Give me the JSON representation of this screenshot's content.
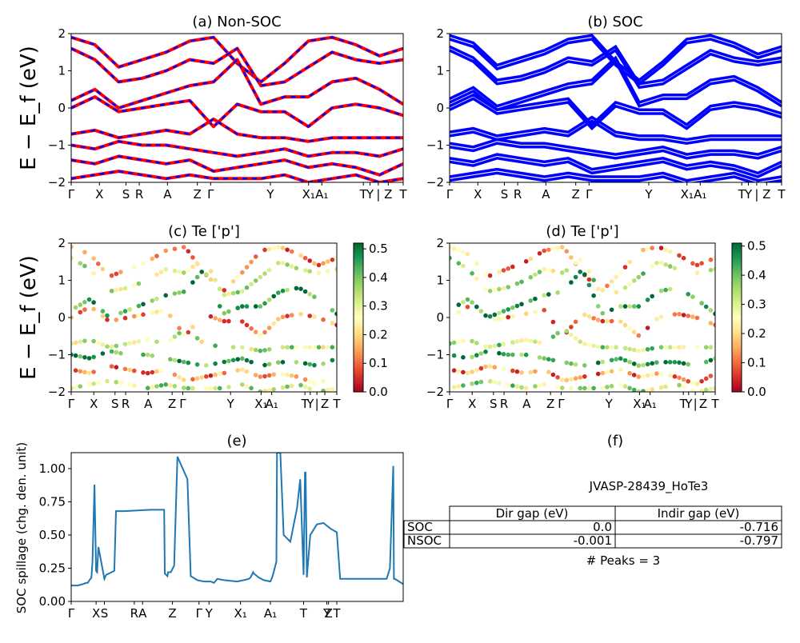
{
  "figure": {
    "material_id": "JVASP-28439_HoTe3",
    "peaks_label": "# Peaks = 3"
  },
  "chart_data": [
    {
      "id": "a",
      "type": "line",
      "title": "(a) Non-SOC",
      "ylabel": "E − E_f (eV)",
      "ylim": [
        -2,
        2
      ],
      "yticks": [
        "−2",
        "−1",
        "0",
        "1",
        "2"
      ],
      "kpath_labels": [
        "Γ",
        "X",
        "S",
        "R",
        "A",
        "Z",
        "Γ",
        "Y",
        "X₁",
        "A₁",
        "T",
        "Y",
        "|",
        "Z",
        "T"
      ],
      "kpath_positions": [
        0,
        0.085,
        0.165,
        0.205,
        0.29,
        0.38,
        0.42,
        0.6,
        0.715,
        0.755,
        0.88,
        0.9,
        0.925,
        0.955,
        1.0
      ],
      "series": [
        {
          "color": "#ff0000",
          "style": "solid"
        },
        {
          "color": "#0000ff",
          "style": "dashed"
        }
      ],
      "bands": [
        [
          1.9,
          1.7,
          1.1,
          1.3,
          1.5,
          1.8,
          1.9,
          1.2,
          0.7,
          1.2,
          1.8,
          1.9,
          1.7,
          1.4,
          1.6
        ],
        [
          1.6,
          1.3,
          0.7,
          0.8,
          1.0,
          1.3,
          1.2,
          1.6,
          0.6,
          0.7,
          1.1,
          1.5,
          1.3,
          1.2,
          1.3
        ],
        [
          0.2,
          0.5,
          0.0,
          0.2,
          0.4,
          0.6,
          0.7,
          1.3,
          0.1,
          0.3,
          0.3,
          0.7,
          0.8,
          0.5,
          0.1
        ],
        [
          0.0,
          0.3,
          -0.1,
          0.0,
          0.1,
          0.2,
          -0.5,
          0.1,
          -0.1,
          -0.1,
          -0.5,
          0.0,
          0.1,
          0.0,
          -0.2
        ],
        [
          -0.7,
          -0.6,
          -0.8,
          -0.7,
          -0.6,
          -0.7,
          -0.3,
          -0.7,
          -0.8,
          -0.8,
          -0.9,
          -0.8,
          -0.8,
          -0.8,
          -0.8
        ],
        [
          -1.0,
          -1.1,
          -0.9,
          -1.0,
          -1.0,
          -1.1,
          -1.2,
          -1.3,
          -1.2,
          -1.1,
          -1.3,
          -1.2,
          -1.2,
          -1.3,
          -1.1
        ],
        [
          -1.4,
          -1.5,
          -1.3,
          -1.4,
          -1.5,
          -1.4,
          -1.7,
          -1.6,
          -1.5,
          -1.4,
          -1.6,
          -1.5,
          -1.6,
          -1.8,
          -1.5
        ],
        [
          -1.9,
          -1.8,
          -1.7,
          -1.8,
          -1.9,
          -1.8,
          -1.9,
          -1.9,
          -1.9,
          -1.8,
          -2.0,
          -1.9,
          -1.8,
          -2.0,
          -1.9
        ]
      ]
    },
    {
      "id": "b",
      "type": "line",
      "title": "(b) SOC",
      "ylim": [
        -2,
        2
      ],
      "yticks": [
        "−2",
        "−1",
        "0",
        "1",
        "2"
      ],
      "kpath_labels": [
        "Γ",
        "X",
        "S",
        "R",
        "A",
        "Z",
        "Γ",
        "Y",
        "X₁",
        "A₁",
        "T",
        "Y",
        "|",
        "Z",
        "T"
      ],
      "kpath_positions": [
        0,
        0.085,
        0.165,
        0.205,
        0.29,
        0.38,
        0.42,
        0.6,
        0.715,
        0.755,
        0.88,
        0.9,
        0.925,
        0.955,
        1.0
      ],
      "series": [
        {
          "color": "#0000ff",
          "style": "solid"
        }
      ]
    },
    {
      "id": "c",
      "type": "scatter",
      "title": "(c)  Te ['p']",
      "ylabel": "E − E_f (eV)",
      "ylim": [
        -2,
        2
      ],
      "yticks": [
        "−2",
        "−1",
        "0",
        "1",
        "2"
      ],
      "kpath_labels": [
        "Γ",
        "X",
        "S",
        "R",
        "A",
        "Z",
        "Γ",
        "Y",
        "X₁",
        "A₁",
        "T",
        "Y",
        "|",
        "Z",
        "T"
      ],
      "kpath_positions": [
        0,
        0.085,
        0.165,
        0.205,
        0.29,
        0.38,
        0.42,
        0.6,
        0.715,
        0.755,
        0.88,
        0.9,
        0.925,
        0.955,
        1.0
      ],
      "colorbar": {
        "min": 0.0,
        "max": 0.52,
        "ticks": [
          "0.0",
          "0.1",
          "0.2",
          "0.3",
          "0.4",
          "0.5"
        ],
        "colormap": "RdYlGn"
      }
    },
    {
      "id": "d",
      "type": "scatter",
      "title": "(d) Te ['p']",
      "ylim": [
        -2,
        2
      ],
      "yticks": [
        "−2",
        "−1",
        "0",
        "1",
        "2"
      ],
      "kpath_labels": [
        "Γ",
        "X",
        "S",
        "R",
        "A",
        "Z",
        "Γ",
        "Y",
        "X₁",
        "A₁",
        "T",
        "Y",
        "|",
        "Z",
        "T"
      ],
      "kpath_positions": [
        0,
        0.085,
        0.165,
        0.205,
        0.29,
        0.38,
        0.42,
        0.6,
        0.715,
        0.755,
        0.88,
        0.9,
        0.925,
        0.955,
        1.0
      ],
      "colorbar": {
        "min": 0.0,
        "max": 0.51,
        "ticks": [
          "0.0",
          "0.1",
          "0.2",
          "0.3",
          "0.4",
          "0.5"
        ],
        "colormap": "RdYlGn"
      }
    },
    {
      "id": "e",
      "type": "line",
      "title": "(e)",
      "ylabel": "SOC spillage (chg. den. unit)",
      "ylim": [
        0,
        1.12
      ],
      "yticks": [
        "0.00",
        "0.25",
        "0.50",
        "0.75",
        "1.00"
      ],
      "ytick_values": [
        0,
        0.25,
        0.5,
        0.75,
        1.0
      ],
      "kpath_labels": [
        "Γ",
        "X",
        "S",
        "R",
        "A",
        "Z",
        "Γ",
        "Y",
        "X₁",
        "A₁",
        "T",
        "Y",
        "Z",
        "T"
      ],
      "kpath_positions": [
        0,
        0.075,
        0.1,
        0.19,
        0.215,
        0.305,
        0.385,
        0.415,
        0.51,
        0.6,
        0.7,
        0.77,
        0.775,
        0.8
      ],
      "series": [
        {
          "color": "#1f77b4",
          "x": [
            0,
            0.02,
            0.035,
            0.045,
            0.05,
            0.055,
            0.058,
            0.061,
            0.064,
            0.07,
            0.075,
            0.078,
            0.082,
            0.1,
            0.105,
            0.13,
            0.135,
            0.16,
            0.24,
            0.244,
            0.28,
            0.282,
            0.29,
            0.292,
            0.3,
            0.31,
            0.32,
            0.35,
            0.36,
            0.38,
            0.4,
            0.42,
            0.43,
            0.44,
            0.46,
            0.5,
            0.52,
            0.535,
            0.54,
            0.544,
            0.548,
            0.55,
            0.565,
            0.58,
            0.6,
            0.605,
            0.61,
            0.614,
            0.618,
            0.62,
            0.625,
            0.63,
            0.64,
            0.66,
            0.68,
            0.69,
            0.7,
            0.704,
            0.706,
            0.71,
            0.72,
            0.74,
            0.76,
            0.78,
            0.8,
            0.81,
            0.92,
            0.95,
            0.96,
            0.97,
            0.972,
            0.975,
            1.0
          ],
          "y": [
            0.12,
            0.12,
            0.13,
            0.14,
            0.14,
            0.16,
            0.17,
            0.18,
            0.3,
            0.88,
            0.23,
            0.22,
            0.41,
            0.17,
            0.2,
            0.23,
            0.68,
            0.68,
            0.69,
            0.69,
            0.69,
            0.21,
            0.19,
            0.22,
            0.22,
            0.27,
            1.09,
            0.92,
            0.19,
            0.16,
            0.15,
            0.15,
            0.14,
            0.17,
            0.16,
            0.15,
            0.16,
            0.17,
            0.18,
            0.2,
            0.22,
            0.21,
            0.18,
            0.16,
            0.15,
            0.18,
            0.22,
            0.26,
            0.3,
            1.12,
            1.12,
            1.12,
            0.5,
            0.45,
            0.7,
            0.92,
            0.2,
            0.97,
            0.97,
            0.18,
            0.5,
            0.58,
            0.59,
            0.55,
            0.52,
            0.17,
            0.17,
            0.17,
            0.25,
            1.02,
            0.17,
            0.17,
            0.13
          ]
        }
      ]
    },
    {
      "id": "f",
      "type": "table",
      "title": "(f)",
      "columns": [
        "Dir gap (eV)",
        "Indir gap (eV)"
      ],
      "rows": [
        {
          "label": "SOC",
          "values": [
            "0.0",
            "-0.716"
          ]
        },
        {
          "label": "NSOC",
          "values": [
            "-0.001",
            "-0.797"
          ]
        }
      ]
    }
  ]
}
